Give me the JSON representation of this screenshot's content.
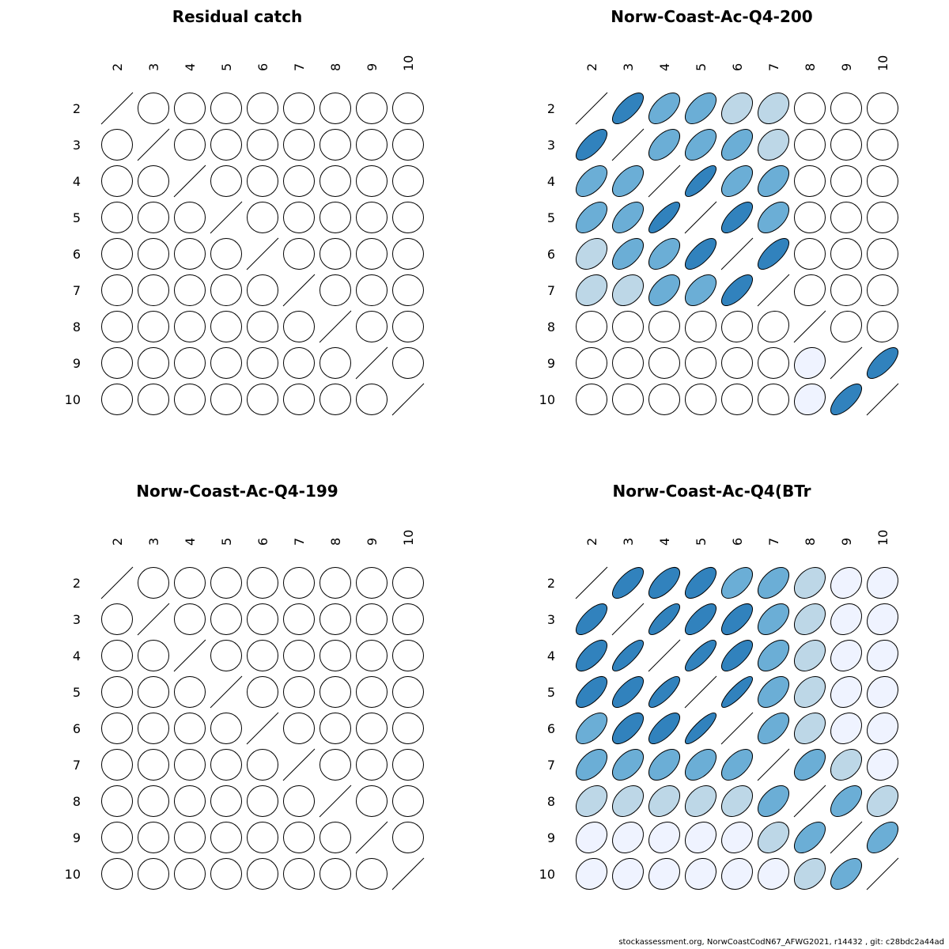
{
  "chart_data": [
    {
      "type": "heatmap",
      "title": "Residual catch",
      "labels": [
        "2",
        "3",
        "4",
        "5",
        "6",
        "7",
        "8",
        "9",
        "10"
      ],
      "matrix": [
        [
          1,
          0,
          0,
          0,
          0,
          0,
          0,
          0,
          0
        ],
        [
          0,
          1,
          0,
          0,
          0,
          0,
          0,
          0,
          0
        ],
        [
          0,
          0,
          1,
          0,
          0,
          0,
          0,
          0,
          0
        ],
        [
          0,
          0,
          0,
          1,
          0,
          0,
          0,
          0,
          0
        ],
        [
          0,
          0,
          0,
          0,
          1,
          0,
          0,
          0,
          0
        ],
        [
          0,
          0,
          0,
          0,
          0,
          1,
          0,
          0,
          0
        ],
        [
          0,
          0,
          0,
          0,
          0,
          0,
          1,
          0,
          0
        ],
        [
          0,
          0,
          0,
          0,
          0,
          0,
          0,
          1,
          0
        ],
        [
          0,
          0,
          0,
          0,
          0,
          0,
          0,
          0,
          1
        ]
      ]
    },
    {
      "type": "heatmap",
      "title": "Norw-Coast-Ac-Q4-200",
      "labels": [
        "2",
        "3",
        "4",
        "5",
        "6",
        "7",
        "8",
        "9",
        "10"
      ],
      "matrix": [
        [
          1,
          0.7,
          0.55,
          0.55,
          0.35,
          0.3,
          0,
          0,
          0
        ],
        [
          0.7,
          1,
          0.55,
          0.55,
          0.55,
          0.3,
          0,
          0,
          0
        ],
        [
          0.55,
          0.55,
          1,
          0.8,
          0.55,
          0.5,
          0,
          0,
          0
        ],
        [
          0.55,
          0.55,
          0.8,
          1,
          0.7,
          0.5,
          0,
          0,
          0
        ],
        [
          0.35,
          0.55,
          0.55,
          0.7,
          1,
          0.7,
          0,
          0,
          0
        ],
        [
          0.3,
          0.3,
          0.5,
          0.5,
          0.7,
          1,
          0.1,
          0,
          0
        ],
        [
          0,
          0,
          0.05,
          0.1,
          0.05,
          0.1,
          1,
          0.1,
          0.05
        ],
        [
          0,
          0,
          0,
          0,
          0,
          0,
          0.15,
          1,
          0.7
        ],
        [
          0,
          0,
          0,
          0,
          0,
          0,
          0.15,
          0.7,
          1
        ]
      ]
    },
    {
      "type": "heatmap",
      "title": "Norw-Coast-Ac-Q4-199",
      "labels": [
        "2",
        "3",
        "4",
        "5",
        "6",
        "7",
        "8",
        "9",
        "10"
      ],
      "matrix": [
        [
          1,
          0,
          0,
          0,
          0,
          0,
          0,
          0,
          0
        ],
        [
          0,
          1,
          0,
          0,
          0,
          0,
          0,
          0,
          0
        ],
        [
          0,
          0,
          1,
          0,
          0,
          0,
          0,
          0,
          0
        ],
        [
          0,
          0,
          0,
          1,
          0,
          0,
          0,
          0,
          0
        ],
        [
          0,
          0,
          0,
          0,
          1,
          0,
          0,
          0,
          0
        ],
        [
          0,
          0,
          0,
          0,
          0,
          1,
          0,
          0,
          0
        ],
        [
          0,
          0,
          0,
          0,
          0,
          0,
          1,
          0,
          0
        ],
        [
          0,
          0,
          0,
          0,
          0,
          0,
          0,
          1,
          0
        ],
        [
          0,
          0,
          0,
          0,
          0,
          0,
          0,
          0,
          1
        ]
      ]
    },
    {
      "type": "heatmap",
      "title": "Norw-Coast-Ac-Q4(BTr",
      "labels": [
        "2",
        "3",
        "4",
        "5",
        "6",
        "7",
        "8",
        "9",
        "10"
      ],
      "matrix": [
        [
          1,
          0.7,
          0.65,
          0.65,
          0.55,
          0.5,
          0.35,
          0.2,
          0.15
        ],
        [
          0.7,
          1,
          0.8,
          0.7,
          0.65,
          0.5,
          0.35,
          0.2,
          0.15
        ],
        [
          0.65,
          0.8,
          1,
          0.8,
          0.7,
          0.5,
          0.35,
          0.2,
          0.15
        ],
        [
          0.65,
          0.7,
          0.8,
          1,
          0.85,
          0.5,
          0.35,
          0.2,
          0.15
        ],
        [
          0.55,
          0.65,
          0.7,
          0.85,
          1,
          0.55,
          0.35,
          0.2,
          0.15
        ],
        [
          0.5,
          0.5,
          0.5,
          0.5,
          0.55,
          1,
          0.5,
          0.35,
          0.15
        ],
        [
          0.35,
          0.35,
          0.35,
          0.35,
          0.35,
          0.5,
          1,
          0.55,
          0.35
        ],
        [
          0.2,
          0.2,
          0.2,
          0.2,
          0.2,
          0.35,
          0.55,
          1,
          0.55
        ],
        [
          0.15,
          0.15,
          0.15,
          0.15,
          0.15,
          0.15,
          0.35,
          0.55,
          1
        ]
      ]
    }
  ],
  "colors": {
    "strong": "#3182bd",
    "medium": "#6baed6",
    "light": "#bdd7e7",
    "faint": "#eff3ff",
    "none": "#ffffff",
    "stroke": "#000000"
  },
  "footer": "stockassessment.org, NorwCoastCodN67_AFWG2021, r14432 , git: c28bdc2a44ad"
}
